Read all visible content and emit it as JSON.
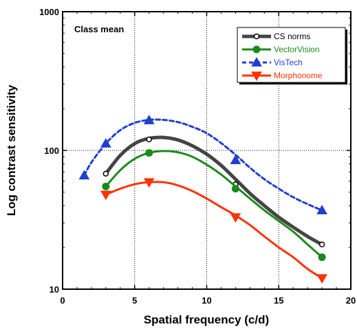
{
  "chart_data": {
    "type": "line",
    "annotation": "Class mean",
    "xlabel": "Spatial frequency (c/d)",
    "ylabel": "Log contrast sensitivity",
    "xlim": [
      0,
      20
    ],
    "ylim": [
      10,
      1000
    ],
    "yscale": "log",
    "x_ticks": [
      "0",
      "5",
      "10",
      "15",
      "20"
    ],
    "y_ticks": [
      "10",
      "100",
      "1000"
    ],
    "grid": "dotted lines at x=5, 10, 15 and y=100",
    "legend_position": "top-right",
    "series": [
      {
        "name": "CS norms",
        "color": "#444444",
        "style": "solid-thick",
        "marker": "open-circle",
        "markers": [
          [
            3,
            68
          ],
          [
            6,
            120
          ],
          [
            12,
            57
          ],
          [
            18,
            21
          ]
        ],
        "curve": [
          [
            3,
            68
          ],
          [
            4,
            92
          ],
          [
            5,
            112
          ],
          [
            6,
            122
          ],
          [
            7,
            124
          ],
          [
            8,
            119
          ],
          [
            9,
            108
          ],
          [
            10,
            94
          ],
          [
            11,
            78
          ],
          [
            12,
            62
          ],
          [
            13,
            49
          ],
          [
            14,
            40
          ],
          [
            15,
            33
          ],
          [
            16,
            28
          ],
          [
            17,
            24
          ],
          [
            18,
            21
          ]
        ]
      },
      {
        "name": "VectorVision",
        "color": "#1a8a1a",
        "style": "solid",
        "marker": "filled-circle",
        "markers": [
          [
            3,
            55
          ],
          [
            6,
            96
          ],
          [
            12,
            53
          ],
          [
            18,
            17
          ]
        ],
        "curve": [
          [
            3,
            55
          ],
          [
            4,
            72
          ],
          [
            5,
            87
          ],
          [
            6,
            96
          ],
          [
            7,
            99
          ],
          [
            8,
            97
          ],
          [
            9,
            90
          ],
          [
            10,
            79
          ],
          [
            11,
            67
          ],
          [
            12,
            55
          ],
          [
            13,
            45
          ],
          [
            14,
            37
          ],
          [
            15,
            31
          ],
          [
            16,
            26
          ],
          [
            17,
            21
          ],
          [
            18,
            17
          ]
        ]
      },
      {
        "name": "VisTech",
        "color": "#1f3fd0",
        "style": "dashed",
        "marker": "up-triangle",
        "markers": [
          [
            1.5,
            66
          ],
          [
            3,
            112
          ],
          [
            6,
            165
          ],
          [
            12,
            85
          ],
          [
            18,
            37
          ]
        ],
        "curve": [
          [
            1.5,
            66
          ],
          [
            2,
            82
          ],
          [
            3,
            112
          ],
          [
            4,
            140
          ],
          [
            5,
            158
          ],
          [
            6,
            166
          ],
          [
            7,
            166
          ],
          [
            8,
            160
          ],
          [
            9,
            148
          ],
          [
            10,
            133
          ],
          [
            11,
            113
          ],
          [
            12,
            93
          ],
          [
            13,
            75
          ],
          [
            14,
            62
          ],
          [
            15,
            53
          ],
          [
            16,
            46
          ],
          [
            17,
            41
          ],
          [
            18,
            37
          ]
        ]
      },
      {
        "name": "Morphonome",
        "color": "#ff3300",
        "style": "solid",
        "marker": "down-triangle",
        "markers": [
          [
            3,
            48
          ],
          [
            6,
            59
          ],
          [
            12,
            33
          ],
          [
            18,
            12
          ]
        ],
        "curve": [
          [
            3,
            48
          ],
          [
            4,
            53
          ],
          [
            5,
            57
          ],
          [
            6,
            59
          ],
          [
            7,
            59
          ],
          [
            8,
            56
          ],
          [
            9,
            51
          ],
          [
            10,
            45
          ],
          [
            11,
            39
          ],
          [
            12,
            34
          ],
          [
            13,
            29
          ],
          [
            14,
            24
          ],
          [
            15,
            20
          ],
          [
            16,
            17
          ],
          [
            17,
            14
          ],
          [
            18,
            12
          ]
        ]
      }
    ]
  }
}
